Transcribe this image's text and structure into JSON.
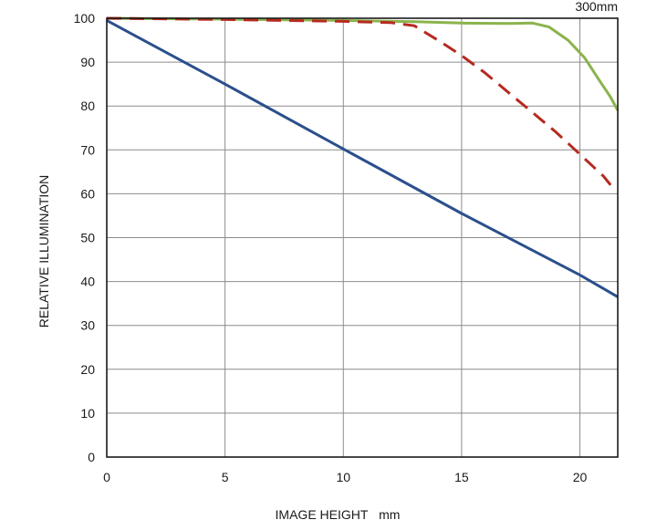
{
  "chart_data": {
    "type": "line",
    "title": "300mm",
    "xlabel": "IMAGE HEIGHT   mm",
    "ylabel": "RELATIVE ILLUMINATION",
    "xlim": [
      0,
      21.6
    ],
    "ylim": [
      0,
      100
    ],
    "xticks": [
      "0",
      "5",
      "10",
      "15",
      "20"
    ],
    "yticks": [
      "0",
      "10",
      "20",
      "30",
      "40",
      "50",
      "60",
      "70",
      "80",
      "90",
      "100"
    ],
    "grid": true,
    "series": [
      {
        "color": "#8bb34d",
        "style": "solid",
        "points": [
          [
            0,
            100
          ],
          [
            5,
            99.8
          ],
          [
            10,
            99.5
          ],
          [
            13,
            99.2
          ],
          [
            15,
            98.9
          ],
          [
            17,
            98.8
          ],
          [
            18,
            98.9
          ],
          [
            18.7,
            98
          ],
          [
            19.5,
            95
          ],
          [
            20.2,
            91
          ],
          [
            20.8,
            86
          ],
          [
            21.3,
            82
          ],
          [
            21.6,
            79
          ]
        ]
      },
      {
        "color": "#b52a20",
        "style": "dashed",
        "points": [
          [
            0,
            100
          ],
          [
            5,
            99.7
          ],
          [
            10,
            99.3
          ],
          [
            12,
            99
          ],
          [
            13,
            98.3
          ],
          [
            14,
            95
          ],
          [
            15,
            91.5
          ],
          [
            16,
            87.5
          ],
          [
            17,
            83
          ],
          [
            18,
            78.5
          ],
          [
            19,
            74
          ],
          [
            20,
            69
          ],
          [
            21,
            64
          ],
          [
            21.3,
            62
          ]
        ]
      },
      {
        "color": "#2b4f8c",
        "style": "solid",
        "points": [
          [
            0,
            99.5
          ],
          [
            5,
            85
          ],
          [
            10,
            70.2
          ],
          [
            15,
            55.5
          ],
          [
            17.5,
            48.5
          ],
          [
            20,
            41.5
          ],
          [
            21.6,
            36.5
          ]
        ]
      }
    ]
  }
}
